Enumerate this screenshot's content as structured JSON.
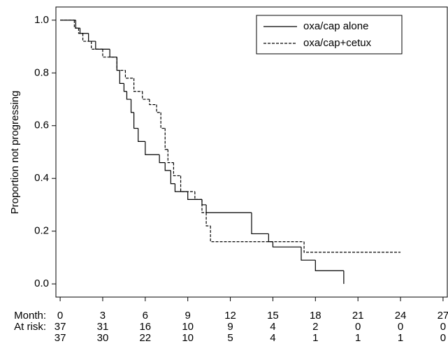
{
  "chart_data": {
    "type": "step",
    "ylabel": "Proportion not progressing",
    "xlabel": "Month:",
    "xlim": [
      -0.3,
      27.3
    ],
    "ylim": [
      -0.05,
      1.05
    ],
    "xticks": [
      0,
      3,
      6,
      9,
      12,
      15,
      18,
      21,
      24,
      27
    ],
    "yticks": [
      {
        "value": 0,
        "label": "0.0"
      },
      {
        "value": 0.2,
        "label": "0.2"
      },
      {
        "value": 0.4,
        "label": "0.4"
      },
      {
        "value": 0.6,
        "label": "0.6"
      },
      {
        "value": 0.8,
        "label": "0.8"
      },
      {
        "value": 1,
        "label": "1.0"
      }
    ],
    "legend": "upper right",
    "series": [
      {
        "name": "oxa/cap alone",
        "color": "#000000",
        "dash": false,
        "x": [
          0,
          1.1,
          1.4,
          2,
          2.5,
          3.5,
          4,
          4.2,
          4.5,
          4.7,
          5,
          5.2,
          5.5,
          6,
          7,
          7.4,
          7.8,
          8.1,
          9,
          10,
          10.3,
          13.5,
          14.7,
          15,
          17,
          18,
          20
        ],
        "values": [
          1.0,
          0.97,
          0.95,
          0.92,
          0.89,
          0.86,
          0.81,
          0.76,
          0.73,
          0.7,
          0.65,
          0.59,
          0.54,
          0.49,
          0.46,
          0.43,
          0.38,
          0.35,
          0.32,
          0.3,
          0.27,
          0.19,
          0.16,
          0.14,
          0.09,
          0.05,
          0.0
        ]
      },
      {
        "name": "oxa/cap+cetux",
        "color": "#000000",
        "dash": true,
        "x": [
          0,
          1,
          1.3,
          1.6,
          2.2,
          3,
          4,
          4.6,
          5.2,
          5.8,
          6.3,
          6.8,
          7.1,
          7.4,
          7.6,
          8,
          8.5,
          9.5,
          10,
          10.3,
          10.6,
          17.2,
          24
        ],
        "values": [
          1.0,
          0.97,
          0.95,
          0.92,
          0.89,
          0.86,
          0.81,
          0.78,
          0.73,
          0.7,
          0.68,
          0.65,
          0.59,
          0.51,
          0.46,
          0.41,
          0.35,
          0.32,
          0.27,
          0.22,
          0.16,
          0.12,
          0.12
        ]
      }
    ],
    "at_risk": {
      "label": "At risk:",
      "rows": [
        [
          37,
          31,
          16,
          10,
          9,
          4,
          2,
          0,
          0,
          0
        ],
        [
          37,
          30,
          22,
          10,
          5,
          4,
          1,
          1,
          1,
          0
        ]
      ]
    }
  }
}
